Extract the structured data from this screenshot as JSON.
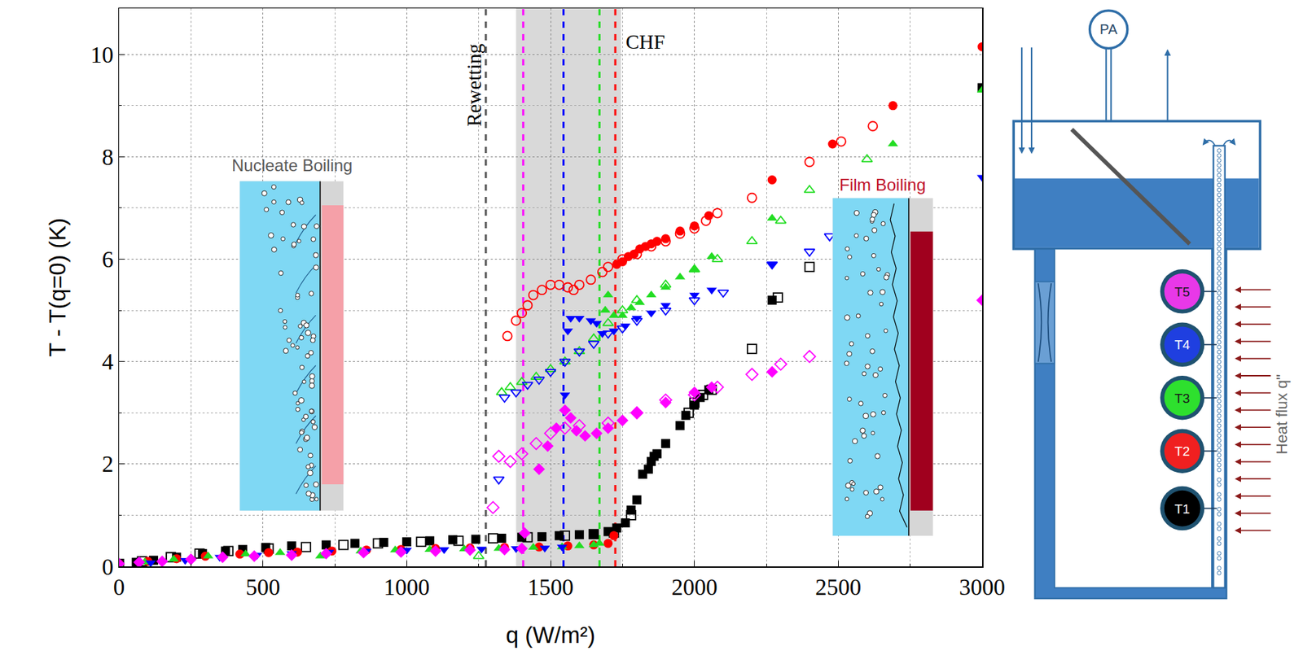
{
  "chart_data": {
    "type": "scatter",
    "x_label": "q (W/m²)",
    "y_label": "T - T(q=0) (K)",
    "xlim": [
      0,
      3000
    ],
    "xticks": [
      0,
      500,
      1000,
      1500,
      2000,
      2500,
      3000
    ],
    "ylim": [
      0,
      10.9
    ],
    "yticks": [
      0,
      2,
      4,
      6,
      8,
      10
    ],
    "grid": true,
    "legend": false,
    "series": [
      {
        "name": "T1",
        "color": "#000000",
        "marker": "square",
        "x": [
          0,
          60,
          120,
          200,
          290,
          370,
          430,
          510,
          600,
          720,
          820,
          920,
          1000,
          1080,
          1160,
          1240,
          1330,
          1400,
          1470,
          1530,
          1600,
          1650,
          1700,
          1730,
          1760,
          1780,
          1800,
          1820,
          1840,
          1850,
          1860,
          1870,
          1900,
          1950,
          1970,
          2000,
          2020,
          2050,
          2270,
          3000
        ],
        "values": [
          0.05,
          0.08,
          0.12,
          0.18,
          0.25,
          0.3,
          0.33,
          0.37,
          0.4,
          0.42,
          0.45,
          0.47,
          0.48,
          0.5,
          0.52,
          0.53,
          0.55,
          0.57,
          0.58,
          0.6,
          0.62,
          0.63,
          0.68,
          0.75,
          0.85,
          1.1,
          1.3,
          1.8,
          1.9,
          2.05,
          2.15,
          2.2,
          2.4,
          2.75,
          2.95,
          3.15,
          3.3,
          3.45,
          5.2,
          9.35
        ]
      },
      {
        "name": "T1",
        "color": "#000000",
        "marker": "square-open",
        "x": [
          0,
          80,
          180,
          280,
          380,
          520,
          650,
          780,
          900,
          1050,
          1180,
          1300,
          1420,
          1550,
          1650,
          1720,
          1780,
          1980,
          2000,
          2030,
          2060,
          2200,
          2290,
          2400
        ],
        "values": [
          0.05,
          0.1,
          0.18,
          0.25,
          0.3,
          0.35,
          0.38,
          0.42,
          0.45,
          0.48,
          0.5,
          0.55,
          0.57,
          0.6,
          0.63,
          0.66,
          1.0,
          3.0,
          3.2,
          3.35,
          3.45,
          4.25,
          5.25,
          5.85
        ]
      },
      {
        "name": "T2",
        "color": "#ff0000",
        "marker": "circle",
        "x": [
          0,
          100,
          200,
          300,
          420,
          520,
          620,
          740,
          860,
          980,
          1100,
          1220,
          1340,
          1460,
          1560,
          1650,
          1700,
          1720,
          1730,
          1750,
          1770,
          1790,
          1810,
          1830,
          1850,
          1870,
          1900,
          1950,
          2000,
          2050,
          2270,
          2480,
          2690,
          3000
        ],
        "values": [
          0.05,
          0.1,
          0.15,
          0.2,
          0.24,
          0.27,
          0.28,
          0.3,
          0.32,
          0.33,
          0.35,
          0.36,
          0.37,
          0.38,
          0.4,
          0.42,
          0.45,
          0.6,
          5.9,
          5.95,
          6.05,
          6.1,
          6.2,
          6.25,
          6.3,
          6.35,
          6.4,
          6.55,
          6.65,
          6.85,
          7.55,
          8.25,
          9.0,
          10.15
        ]
      },
      {
        "name": "T2",
        "color": "#ff0000",
        "marker": "circle-open",
        "x": [
          1350,
          1380,
          1400,
          1420,
          1440,
          1470,
          1500,
          1530,
          1560,
          1580,
          1600,
          1640,
          1680,
          1700,
          1750,
          1800,
          1850,
          1900,
          1950,
          2000,
          2040,
          2080,
          2200,
          2400,
          2510,
          2620
        ],
        "values": [
          4.5,
          4.8,
          4.95,
          5.1,
          5.3,
          5.4,
          5.5,
          5.5,
          5.45,
          5.4,
          5.5,
          5.6,
          5.75,
          5.85,
          6.0,
          6.1,
          6.25,
          6.35,
          6.5,
          6.6,
          6.75,
          6.9,
          7.2,
          7.9,
          8.3,
          8.6
        ]
      },
      {
        "name": "T3",
        "color": "#22dd22",
        "marker": "triangle-up",
        "x": [
          0,
          90,
          190,
          310,
          440,
          560,
          700,
          840,
          960,
          1080,
          1200,
          1320,
          1440,
          1540,
          1600,
          1650,
          1670,
          1690,
          1700,
          1720,
          1750,
          1780,
          1810,
          1850,
          1900,
          1950,
          2000,
          2060,
          2270,
          2690,
          3000
        ],
        "values": [
          0.03,
          0.08,
          0.14,
          0.2,
          0.24,
          0.27,
          0.2,
          0.3,
          0.32,
          0.33,
          0.34,
          0.35,
          0.37,
          0.38,
          0.4,
          0.42,
          0.45,
          5.0,
          5.3,
          4.9,
          4.9,
          5.05,
          5.15,
          5.3,
          5.45,
          5.65,
          5.8,
          6.05,
          6.8,
          8.25,
          9.3
        ]
      },
      {
        "name": "T3",
        "color": "#22dd22",
        "marker": "triangle-up-open",
        "x": [
          1250,
          1330,
          1360,
          1400,
          1450,
          1500,
          1550,
          1600,
          1650,
          1700,
          1750,
          1800,
          1900,
          2000,
          2080,
          2200,
          2300,
          2400,
          2600
        ],
        "values": [
          0.2,
          3.4,
          3.5,
          3.6,
          3.7,
          3.85,
          4.0,
          4.2,
          4.45,
          4.75,
          5.0,
          5.2,
          5.5,
          5.8,
          6.0,
          6.35,
          6.75,
          7.35,
          7.95
        ]
      },
      {
        "name": "T4",
        "color": "#0000ff",
        "marker": "triangle-down",
        "x": [
          0,
          110,
          230,
          350,
          480,
          600,
          730,
          860,
          1000,
          1130,
          1260,
          1380,
          1480,
          1540,
          1550,
          1560,
          1570,
          1600,
          1640,
          1660,
          1680,
          1720,
          1760,
          1800,
          1850,
          1900,
          2000,
          2060,
          2270,
          3000
        ],
        "values": [
          0.03,
          0.07,
          0.12,
          0.18,
          0.22,
          0.25,
          0.28,
          0.3,
          0.32,
          0.33,
          0.34,
          0.35,
          0.36,
          0.38,
          3.35,
          4.6,
          4.85,
          4.85,
          4.8,
          4.75,
          4.55,
          4.6,
          4.7,
          4.85,
          4.95,
          5.1,
          5.3,
          5.4,
          5.9,
          7.6
        ]
      },
      {
        "name": "T4",
        "color": "#0000ff",
        "marker": "triangle-down-open",
        "x": [
          1320,
          1340,
          1380,
          1420,
          1460,
          1500,
          1550,
          1600,
          1650,
          1700,
          1750,
          1800,
          1900,
          2000,
          2100,
          2270,
          2400,
          2470
        ],
        "values": [
          1.7,
          3.3,
          3.4,
          3.55,
          3.65,
          3.8,
          4.0,
          4.2,
          4.35,
          4.55,
          4.65,
          4.8,
          5.0,
          5.2,
          5.35,
          5.9,
          6.15,
          6.45
        ]
      },
      {
        "name": "T5",
        "color": "#ff00ff",
        "marker": "diamond",
        "x": [
          0,
          70,
          150,
          250,
          360,
          470,
          600,
          720,
          850,
          980,
          1100,
          1220,
          1340,
          1400,
          1410,
          1460,
          1490,
          1520,
          1550,
          1570,
          1590,
          1620,
          1660,
          1700,
          1750,
          1800,
          1900,
          2000,
          2060,
          2270,
          3000
        ],
        "values": [
          0.05,
          0.08,
          0.1,
          0.14,
          0.18,
          0.2,
          0.22,
          0.25,
          0.27,
          0.28,
          0.3,
          0.32,
          0.33,
          0.35,
          0.65,
          1.9,
          2.35,
          2.7,
          3.05,
          2.9,
          2.65,
          2.55,
          2.6,
          2.7,
          2.85,
          3.0,
          3.2,
          3.4,
          3.5,
          3.8,
          5.2
        ]
      },
      {
        "name": "T5",
        "color": "#ff00ff",
        "marker": "diamond-open",
        "x": [
          1300,
          1320,
          1360,
          1400,
          1450,
          1500,
          1550,
          1600,
          1700,
          1800,
          1900,
          2000,
          2080,
          2200,
          2300,
          2400
        ],
        "values": [
          1.15,
          2.15,
          2.05,
          2.2,
          2.4,
          2.6,
          2.7,
          2.75,
          2.8,
          3.0,
          3.25,
          3.35,
          3.5,
          3.75,
          3.95,
          4.1
        ]
      }
    ],
    "vertical_lines": [
      {
        "x": 1275,
        "color": "#555555",
        "line_style": "dash"
      },
      {
        "x": 1405,
        "color": "#ff00ff",
        "line_style": "dash"
      },
      {
        "x": 1545,
        "color": "#0000ff",
        "line_style": "dash"
      },
      {
        "x": 1670,
        "color": "#22dd22",
        "line_style": "dash"
      },
      {
        "x": 1725,
        "color": "#ff0000",
        "line_style": "dash"
      }
    ],
    "shaded_region": [
      1380,
      1745
    ],
    "annotations": [
      {
        "text": "Rewetting",
        "x": 1235,
        "y": 9.4
      },
      {
        "text": "CHF",
        "x": 1830,
        "y": 10.25
      }
    ],
    "insets": [
      {
        "title": "Nucleate Boiling",
        "color": "#595959"
      },
      {
        "title": "Film Boiling",
        "color": "#c0102a"
      }
    ]
  },
  "diagram": {
    "gauge": "PA",
    "sensors": [
      {
        "label": "T5",
        "color": "#e838e8"
      },
      {
        "label": "T4",
        "color": "#1f3fe0"
      },
      {
        "label": "T3",
        "color": "#2ee02e"
      },
      {
        "label": "T2",
        "color": "#f02020"
      },
      {
        "label": "T1",
        "color": "#000000"
      }
    ],
    "heat_flux_label": "Heat flux q''"
  }
}
